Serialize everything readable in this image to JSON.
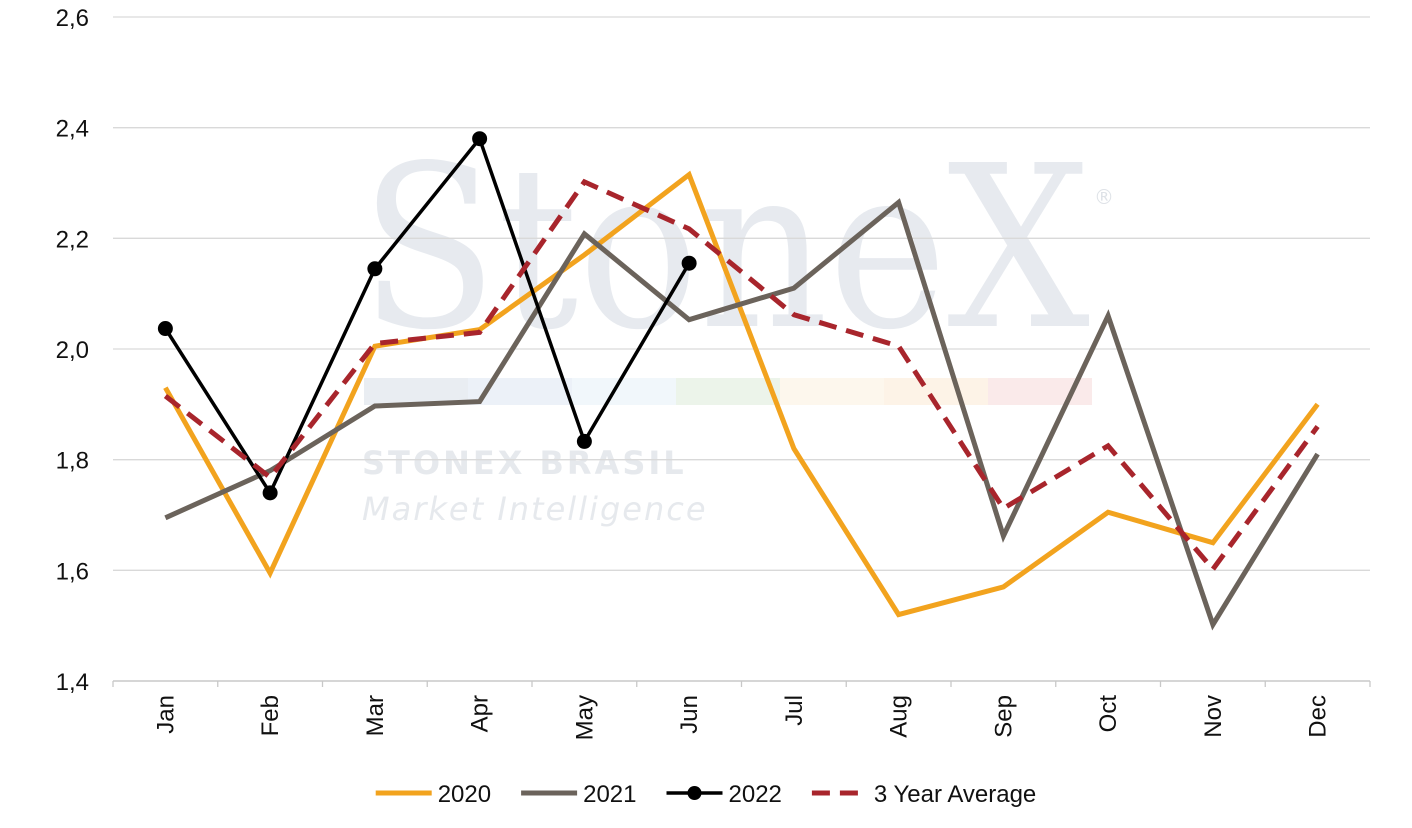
{
  "watermark": {
    "logo_text": "StoneX",
    "registered_mark": "®",
    "brand_line": "STONEX BRASIL",
    "sub_line": "Market Intelligence",
    "band_colors": [
      "#d7dee8",
      "#dde6f2",
      "#e6f0f7",
      "#dcebd9",
      "#fcf1de",
      "#fce9d3",
      "#f5d9d9"
    ]
  },
  "chart_data": {
    "type": "line",
    "categories": [
      "Jan",
      "Feb",
      "Mar",
      "Apr",
      "May",
      "Jun",
      "Jul",
      "Aug",
      "Sep",
      "Oct",
      "Nov",
      "Dec"
    ],
    "ylim": [
      1.4,
      2.6
    ],
    "yticks": [
      1.4,
      1.6,
      1.8,
      2.0,
      2.2,
      2.4,
      2.6
    ],
    "ytick_labels": [
      "1,4",
      "1,6",
      "1,8",
      "2,0",
      "2,2",
      "2,4",
      "2,6"
    ],
    "grid": true,
    "legend_position": "bottom",
    "series": [
      {
        "name": "2020",
        "color": "#f2a31e",
        "style": "solid",
        "markers": false,
        "values": [
          1.93,
          1.595,
          2.005,
          2.035,
          2.17,
          2.315,
          1.82,
          1.52,
          1.57,
          1.705,
          1.65,
          1.9
        ]
      },
      {
        "name": "2021",
        "color": "#6b635b",
        "style": "solid",
        "markers": false,
        "values": [
          1.695,
          1.78,
          1.897,
          1.905,
          2.208,
          2.053,
          2.11,
          2.265,
          1.662,
          2.06,
          1.502,
          1.81
        ]
      },
      {
        "name": "2022",
        "color": "#000000",
        "style": "solid",
        "markers": true,
        "values": [
          2.037,
          1.74,
          2.145,
          2.38,
          1.833,
          2.155,
          null,
          null,
          null,
          null,
          null,
          null
        ]
      },
      {
        "name": "3 Year Average",
        "color": "#a8252c",
        "style": "dashed",
        "markers": false,
        "values": [
          1.915,
          1.768,
          2.01,
          2.03,
          2.302,
          2.217,
          2.062,
          2.005,
          1.712,
          1.825,
          1.602,
          1.86
        ]
      }
    ]
  }
}
